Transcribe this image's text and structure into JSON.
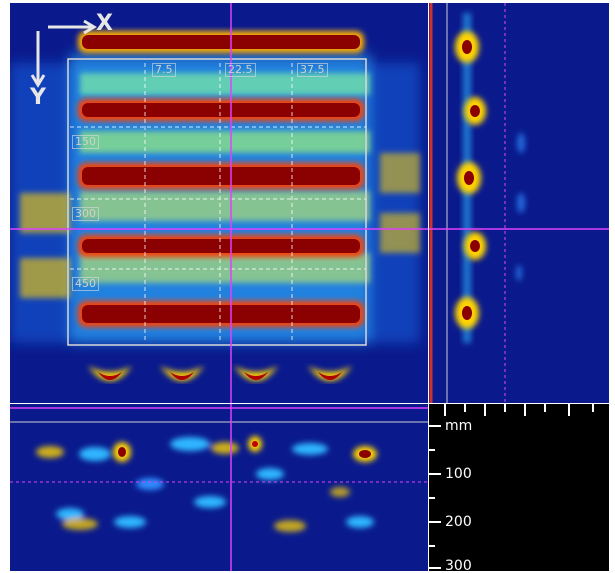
{
  "viewer": {
    "orientation": {
      "x_label": "X",
      "y_label": "Y"
    },
    "top_labels": [
      "7.5",
      "22.5",
      "37.5"
    ],
    "row_labels": [
      "150",
      "300",
      "450"
    ],
    "depth_scale": {
      "unit": "mm",
      "ticks": [
        "100",
        "200",
        "300"
      ]
    }
  },
  "colors": {
    "background": "#0a1a8c",
    "hot": "#8b0000",
    "warm": "#ffd400",
    "cool": "#3fd1ff",
    "crosshair": "#e040ff"
  }
}
